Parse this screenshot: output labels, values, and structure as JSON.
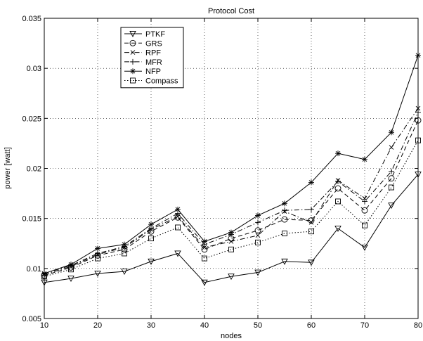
{
  "chart_data": {
    "type": "line",
    "title": "Protocol Cost",
    "xlabel": "nodes",
    "ylabel": "power [watt]",
    "xlim": [
      10,
      80
    ],
    "ylim": [
      0.005,
      0.035
    ],
    "x_ticks": [
      10,
      20,
      30,
      40,
      50,
      60,
      70,
      80
    ],
    "y_ticks": [
      0.005,
      0.01,
      0.015,
      0.02,
      0.025,
      0.03,
      0.035
    ],
    "x_tick_labels": [
      "10",
      "20",
      "30",
      "40",
      "50",
      "60",
      "70",
      "80"
    ],
    "y_tick_labels": [
      "0.005",
      "0.01",
      "0.015",
      "0.02",
      "0.025",
      "0.03",
      "0.035"
    ],
    "grid": true,
    "legend_position": "top-left",
    "x": [
      10,
      15,
      20,
      25,
      30,
      35,
      40,
      45,
      50,
      55,
      60,
      65,
      70,
      75,
      80
    ],
    "series": [
      {
        "name": "PTKF",
        "marker": "triangle-down",
        "line": "solid",
        "color": "#000000",
        "values": [
          0.0086,
          0.009,
          0.0095,
          0.0097,
          0.0107,
          0.0115,
          0.0086,
          0.0092,
          0.0096,
          0.0107,
          0.0106,
          0.014,
          0.0121,
          0.0163,
          0.0194
        ]
      },
      {
        "name": "GRS",
        "marker": "circle",
        "line": "dashed",
        "color": "#000000",
        "values": [
          0.0093,
          0.0101,
          0.0113,
          0.0119,
          0.0137,
          0.0151,
          0.0119,
          0.013,
          0.0138,
          0.0149,
          0.0148,
          0.018,
          0.0158,
          0.019,
          0.0248
        ]
      },
      {
        "name": "RPF",
        "marker": "x",
        "line": "dashdot",
        "color": "#000000",
        "values": [
          0.0094,
          0.0102,
          0.0114,
          0.0121,
          0.0139,
          0.0152,
          0.0121,
          0.0127,
          0.0133,
          0.0157,
          0.0146,
          0.0188,
          0.017,
          0.0221,
          0.026
        ]
      },
      {
        "name": "MFR",
        "marker": "plus",
        "line": "dashdot",
        "color": "#000000",
        "values": [
          0.0095,
          0.0103,
          0.0115,
          0.0122,
          0.014,
          0.0155,
          0.0124,
          0.0134,
          0.0146,
          0.0158,
          0.0159,
          0.0187,
          0.0167,
          0.0197,
          0.0256
        ]
      },
      {
        "name": "NFP",
        "marker": "asterisk",
        "line": "solid",
        "color": "#000000",
        "values": [
          0.0095,
          0.0104,
          0.012,
          0.0124,
          0.0144,
          0.0159,
          0.0127,
          0.0136,
          0.0153,
          0.0165,
          0.0186,
          0.0215,
          0.0209,
          0.0236,
          0.0313
        ]
      },
      {
        "name": "Compass",
        "marker": "square",
        "line": "dotted",
        "color": "#000000",
        "values": [
          0.0092,
          0.0099,
          0.011,
          0.0115,
          0.013,
          0.0141,
          0.011,
          0.0119,
          0.0126,
          0.0135,
          0.0137,
          0.0167,
          0.0143,
          0.0181,
          0.0228
        ]
      }
    ]
  }
}
